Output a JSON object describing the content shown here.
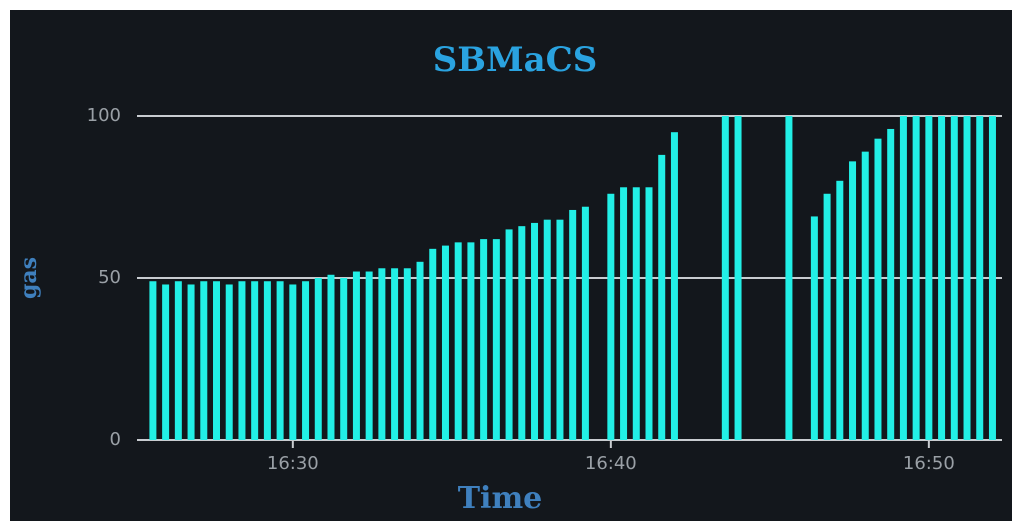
{
  "chart_data": {
    "type": "bar",
    "title": "SBMaCS",
    "x_label": "Time",
    "y_label": "gas",
    "x": [
      25.6,
      26,
      26.4,
      26.8,
      27.2,
      27.6,
      28,
      28.4,
      28.8,
      29.2,
      29.6,
      30,
      30.4,
      30.8,
      31.2,
      31.6,
      32,
      32.4,
      32.8,
      33.2,
      33.6,
      34,
      34.4,
      34.8,
      35.2,
      35.6,
      36,
      36.4,
      36.8,
      37.2,
      37.6,
      38,
      38.4,
      38.8,
      39.2,
      39.6,
      40,
      40.4,
      40.8,
      41.2,
      41.6,
      42,
      42.4,
      42.8,
      43.2,
      43.6,
      44,
      44.4,
      44.8,
      45.2,
      45.6,
      46,
      46.4,
      46.8,
      47.2,
      47.6,
      48,
      48.4,
      48.8,
      49.2,
      49.6,
      50,
      50.4,
      50.8,
      51.2,
      51.6,
      52
    ],
    "values": [
      49,
      48,
      49,
      48,
      49,
      49,
      48,
      49,
      49,
      49,
      49,
      48,
      49,
      50,
      51,
      50,
      52,
      52,
      53,
      53,
      53,
      55,
      59,
      60,
      61,
      61,
      62,
      62,
      65,
      66,
      67,
      68,
      68,
      71,
      72,
      null,
      76,
      78,
      78,
      78,
      88,
      95,
      null,
      null,
      null,
      100,
      100,
      null,
      null,
      null,
      100,
      null,
      69,
      76,
      80,
      86,
      89,
      93,
      96,
      100,
      100,
      100,
      100,
      100,
      100,
      100,
      100
    ],
    "color": "#22efe6",
    "xlim": [
      25.1,
      52.3
    ],
    "xticks": [
      {
        "value": 30,
        "label": "16:30"
      },
      {
        "value": 40,
        "label": "16:40"
      },
      {
        "value": 50,
        "label": "16:50"
      }
    ],
    "ylim": [
      0,
      100
    ],
    "yticks": [
      0,
      50,
      100
    ],
    "grid": true
  }
}
